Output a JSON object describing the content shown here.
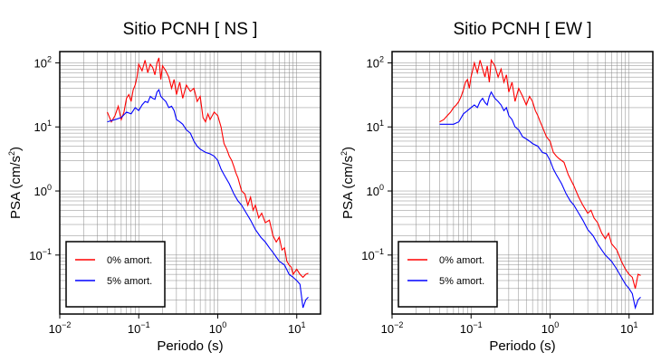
{
  "chart_data": [
    {
      "type": "line",
      "title": "Sitio PCNH [ NS ]",
      "xlabel": "Periodo (s)",
      "ylabel_main": "PSA (cm/s",
      "ylabel_sup": "2",
      "ylabel_end": ")",
      "xscale": "log",
      "yscale": "log",
      "xlim": [
        0.01,
        20
      ],
      "ylim": [
        0.012,
        150
      ],
      "grid": true,
      "legend_position": "lower-left",
      "x_ticks": [
        {
          "base": "10",
          "exp": "−2"
        },
        {
          "base": "10",
          "exp": "−1"
        },
        {
          "base": "10",
          "exp": "0"
        },
        {
          "base": "10",
          "exp": "1"
        }
      ],
      "y_ticks": [
        {
          "base": "10",
          "exp": "−1"
        },
        {
          "base": "10",
          "exp": "0"
        },
        {
          "base": "10",
          "exp": "1"
        },
        {
          "base": "10",
          "exp": "2"
        }
      ],
      "series": [
        {
          "name": "0% amort.",
          "color": "#ff0000",
          "x": [
            0.04,
            0.045,
            0.05,
            0.055,
            0.06,
            0.065,
            0.07,
            0.075,
            0.08,
            0.085,
            0.09,
            0.095,
            0.1,
            0.11,
            0.12,
            0.13,
            0.14,
            0.15,
            0.16,
            0.17,
            0.18,
            0.19,
            0.2,
            0.22,
            0.24,
            0.26,
            0.28,
            0.3,
            0.33,
            0.36,
            0.4,
            0.45,
            0.5,
            0.55,
            0.6,
            0.65,
            0.7,
            0.75,
            0.8,
            0.9,
            1.0,
            1.1,
            1.2,
            1.3,
            1.4,
            1.5,
            1.6,
            1.7,
            1.8,
            2.0,
            2.2,
            2.4,
            2.6,
            2.8,
            3.0,
            3.3,
            3.6,
            4.0,
            4.5,
            5.0,
            5.5,
            6.0,
            6.5,
            7.0,
            7.5,
            8.0,
            8.5,
            9.0,
            10,
            11,
            12,
            13,
            14
          ],
          "y": [
            17,
            12,
            15,
            21,
            13,
            17,
            28,
            32,
            25,
            38,
            45,
            60,
            95,
            75,
            110,
            70,
            95,
            85,
            65,
            100,
            120,
            55,
            90,
            75,
            60,
            40,
            55,
            32,
            50,
            28,
            45,
            36,
            40,
            25,
            30,
            14,
            12,
            16,
            13,
            17,
            15,
            10,
            5.5,
            4.5,
            3.5,
            3.0,
            2.4,
            1.9,
            1.6,
            1.0,
            0.9,
            0.6,
            0.8,
            0.5,
            0.6,
            0.38,
            0.45,
            0.32,
            0.35,
            0.2,
            0.16,
            0.19,
            0.12,
            0.13,
            0.08,
            0.07,
            0.065,
            0.05,
            0.06,
            0.05,
            0.045,
            0.05,
            0.052
          ]
        },
        {
          "name": "5% amort.",
          "color": "#0000ff",
          "x": [
            0.04,
            0.05,
            0.06,
            0.07,
            0.08,
            0.09,
            0.1,
            0.11,
            0.12,
            0.13,
            0.14,
            0.15,
            0.16,
            0.17,
            0.18,
            0.19,
            0.2,
            0.22,
            0.24,
            0.26,
            0.28,
            0.3,
            0.33,
            0.36,
            0.4,
            0.45,
            0.5,
            0.55,
            0.6,
            0.7,
            0.8,
            0.9,
            1.0,
            1.1,
            1.2,
            1.4,
            1.6,
            1.8,
            2.0,
            2.3,
            2.6,
            3.0,
            3.5,
            4.0,
            4.5,
            5.0,
            6.0,
            7.0,
            8.0,
            9.0,
            10,
            11,
            12,
            13,
            14
          ],
          "y": [
            12,
            13,
            14,
            17,
            16,
            20,
            18,
            22,
            25,
            24,
            30,
            28,
            27,
            35,
            38,
            30,
            28,
            25,
            20,
            21,
            18,
            13,
            12,
            11,
            9,
            8,
            6,
            5,
            4.5,
            4.0,
            3.8,
            3.5,
            3.0,
            2.2,
            1.8,
            1.3,
            0.9,
            0.7,
            0.6,
            0.45,
            0.35,
            0.25,
            0.19,
            0.16,
            0.13,
            0.11,
            0.08,
            0.07,
            0.05,
            0.045,
            0.04,
            0.035,
            0.015,
            0.02,
            0.022
          ]
        }
      ]
    },
    {
      "type": "line",
      "title": "Sitio PCNH [ EW ]",
      "xlabel": "Periodo (s)",
      "ylabel_main": "PSA (cm/s",
      "ylabel_sup": "2",
      "ylabel_end": ")",
      "xscale": "log",
      "yscale": "log",
      "xlim": [
        0.01,
        20
      ],
      "ylim": [
        0.012,
        150
      ],
      "grid": true,
      "legend_position": "lower-left",
      "x_ticks": [
        {
          "base": "10",
          "exp": "−2"
        },
        {
          "base": "10",
          "exp": "−1"
        },
        {
          "base": "10",
          "exp": "0"
        },
        {
          "base": "10",
          "exp": "1"
        }
      ],
      "y_ticks": [
        {
          "base": "10",
          "exp": "−1"
        },
        {
          "base": "10",
          "exp": "0"
        },
        {
          "base": "10",
          "exp": "1"
        },
        {
          "base": "10",
          "exp": "2"
        }
      ],
      "series": [
        {
          "name": "0% amort.",
          "color": "#ff0000",
          "x": [
            0.04,
            0.045,
            0.05,
            0.055,
            0.06,
            0.065,
            0.07,
            0.075,
            0.08,
            0.085,
            0.09,
            0.095,
            0.1,
            0.11,
            0.12,
            0.13,
            0.14,
            0.15,
            0.16,
            0.17,
            0.18,
            0.2,
            0.22,
            0.24,
            0.26,
            0.28,
            0.3,
            0.33,
            0.36,
            0.4,
            0.45,
            0.5,
            0.55,
            0.6,
            0.65,
            0.7,
            0.75,
            0.8,
            0.9,
            1.0,
            1.1,
            1.2,
            1.3,
            1.5,
            1.7,
            2.0,
            2.3,
            2.6,
            3.0,
            3.3,
            3.6,
            4.0,
            4.5,
            5.0,
            5.5,
            6.0,
            7.0,
            8.0,
            9.0,
            10,
            11,
            12,
            13,
            14
          ],
          "y": [
            12,
            13,
            15,
            17,
            20,
            22,
            25,
            30,
            38,
            50,
            55,
            40,
            60,
            100,
            70,
            110,
            80,
            60,
            90,
            50,
            110,
            90,
            60,
            80,
            50,
            65,
            35,
            50,
            25,
            40,
            30,
            22,
            30,
            25,
            18,
            15,
            12,
            10,
            7,
            6,
            4,
            3.5,
            3.2,
            2.8,
            1.8,
            1.2,
            0.8,
            0.6,
            0.45,
            0.5,
            0.38,
            0.32,
            0.22,
            0.18,
            0.22,
            0.15,
            0.12,
            0.08,
            0.06,
            0.05,
            0.045,
            0.03,
            0.05,
            0.048
          ]
        },
        {
          "name": "5% amort.",
          "color": "#0000ff",
          "x": [
            0.04,
            0.05,
            0.06,
            0.07,
            0.08,
            0.09,
            0.1,
            0.11,
            0.12,
            0.13,
            0.14,
            0.15,
            0.16,
            0.17,
            0.18,
            0.2,
            0.22,
            0.24,
            0.26,
            0.28,
            0.3,
            0.33,
            0.36,
            0.4,
            0.45,
            0.5,
            0.55,
            0.6,
            0.7,
            0.8,
            0.9,
            1.0,
            1.1,
            1.2,
            1.4,
            1.6,
            1.8,
            2.0,
            2.3,
            2.6,
            3.0,
            3.5,
            4.0,
            4.5,
            5.0,
            6.0,
            7.0,
            8.0,
            9.0,
            10,
            11,
            12,
            13,
            14
          ],
          "y": [
            11,
            11,
            11,
            12,
            16,
            18,
            20,
            22,
            20,
            25,
            28,
            24,
            22,
            30,
            35,
            28,
            25,
            22,
            18,
            20,
            15,
            13,
            10,
            9,
            7,
            6.5,
            6.0,
            5.5,
            5.0,
            4.0,
            3.8,
            3.0,
            2.2,
            1.8,
            1.3,
            0.9,
            0.7,
            0.6,
            0.45,
            0.35,
            0.25,
            0.2,
            0.15,
            0.12,
            0.1,
            0.08,
            0.06,
            0.045,
            0.035,
            0.03,
            0.025,
            0.015,
            0.02,
            0.022
          ]
        }
      ]
    }
  ]
}
